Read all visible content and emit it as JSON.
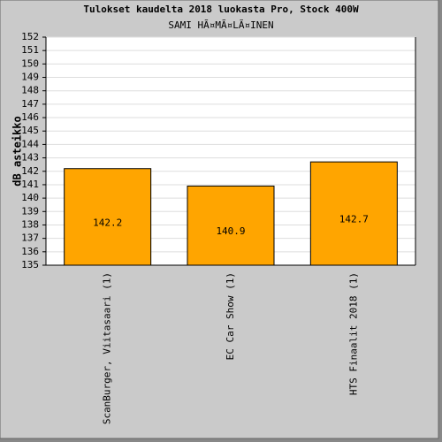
{
  "chart_data": {
    "type": "bar",
    "title": "Tulokset kaudelta 2018 luokasta Pro, Stock 400W",
    "subtitle": "SAMI HÃ¤MÃ¤LÃ¤INEN",
    "y_label": "dB asteikko",
    "categories": [
      "ScanBurger, Viitasaari (1)",
      "EC Car Show (1)",
      "HTS Finaalit 2018 (1)"
    ],
    "values": [
      142.2,
      140.9,
      142.7
    ],
    "color": "#ffa500",
    "ylim": [
      135,
      152
    ],
    "yticks": [
      135,
      136,
      137,
      138,
      139,
      140,
      141,
      142,
      143,
      144,
      145,
      146,
      147,
      148,
      149,
      150,
      151,
      152
    ],
    "grid": true
  }
}
